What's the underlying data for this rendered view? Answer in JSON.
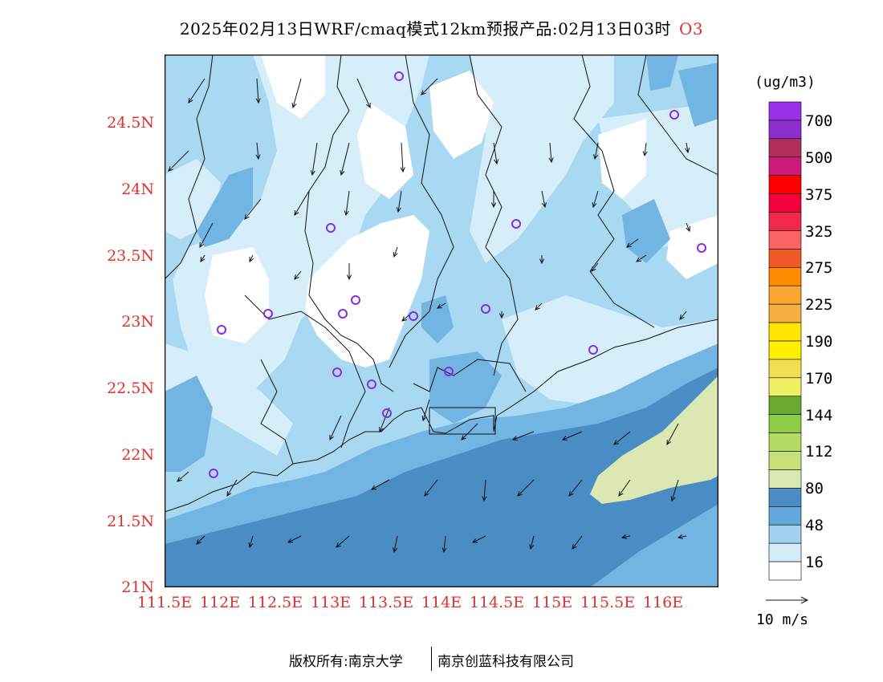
{
  "title": {
    "text": "2025年02月13日WRF/cmaq模式12km预报产品:02月13日03时",
    "pollutant": "O3"
  },
  "axes": {
    "lat_ticks": [
      "24.5N",
      "24N",
      "23.5N",
      "23N",
      "22.5N",
      "22N",
      "21.5N",
      "21N"
    ],
    "lon_ticks": [
      "111.5E",
      "112E",
      "112.5E",
      "113E",
      "113.5E",
      "114E",
      "114.5E",
      "115E",
      "115.5E",
      "116E"
    ],
    "lat_range": [
      21.0,
      25.0
    ],
    "lon_range": [
      111.5,
      116.5
    ],
    "tick_color": "#e03030"
  },
  "colorbar": {
    "unit": "(ug/m3)",
    "labels": [
      "700",
      "500",
      "375",
      "325",
      "275",
      "225",
      "190",
      "170",
      "144",
      "112",
      "80",
      "48",
      "16"
    ],
    "colors_top_to_bottom": [
      "#9932e6",
      "#8c2ecc",
      "#b0305a",
      "#cc1c78",
      "#ff0000",
      "#f5003c",
      "#f0284c",
      "#fa6464",
      "#f05a28",
      "#ff8c00",
      "#f8a832",
      "#f5b040",
      "#ffe600",
      "#ffee00",
      "#f0e050",
      "#f0f064",
      "#6aaa32",
      "#8ccc46",
      "#b4dc64",
      "#c8e07c",
      "#dce8b4",
      "#4a8cc4",
      "#64a8dc",
      "#a0d2f0",
      "#d2ecf8",
      "#ffffff"
    ]
  },
  "map": {
    "fill_levels": {
      "level_16": "#d6eefa",
      "level_32": "#a8d8f2",
      "level_48": "#72b4e2",
      "level_64": "#4a8cc4",
      "level_80": "#dce8b4"
    },
    "station_marker": "purple-circle",
    "station_color": "#8a2be2"
  },
  "legend": {
    "wind_ref": "10 m/s"
  },
  "footer": {
    "copyright": "版权所有:南京大学",
    "company": "南京创蓝科技有限公司"
  }
}
